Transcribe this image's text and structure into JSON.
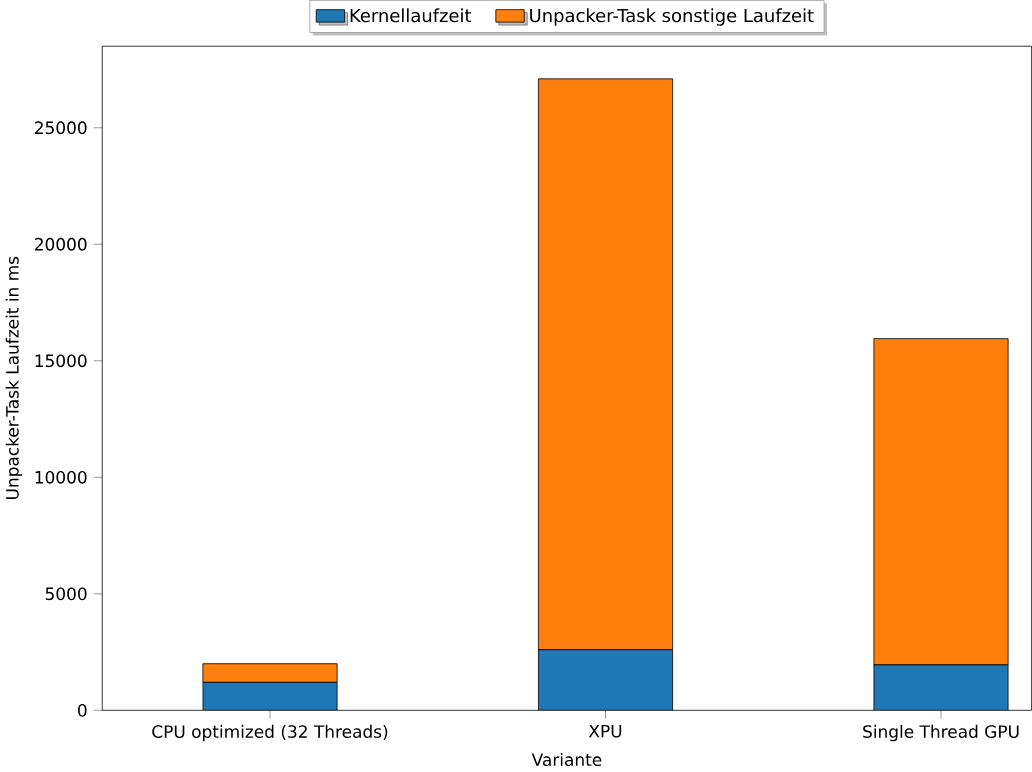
{
  "chart_data": {
    "type": "bar",
    "stacked": true,
    "xlabel": "Variante",
    "ylabel": "Unpacker-Task Laufzeit in ms",
    "categories": [
      "CPU optimized (32 Threads)",
      "XPU",
      "Single Thread GPU"
    ],
    "series": [
      {
        "name": "Kernellaufzeit",
        "color": "#1f77b4",
        "values": [
          1200,
          2600,
          1950
        ]
      },
      {
        "name": "Unpacker-Task sonstige Laufzeit",
        "color": "#ff7f0e",
        "values": [
          800,
          24500,
          14000
        ]
      }
    ],
    "ylim": [
      0,
      28500
    ],
    "yticks": [
      0,
      5000,
      10000,
      15000,
      20000,
      25000
    ],
    "legend": "top",
    "grid": false
  }
}
